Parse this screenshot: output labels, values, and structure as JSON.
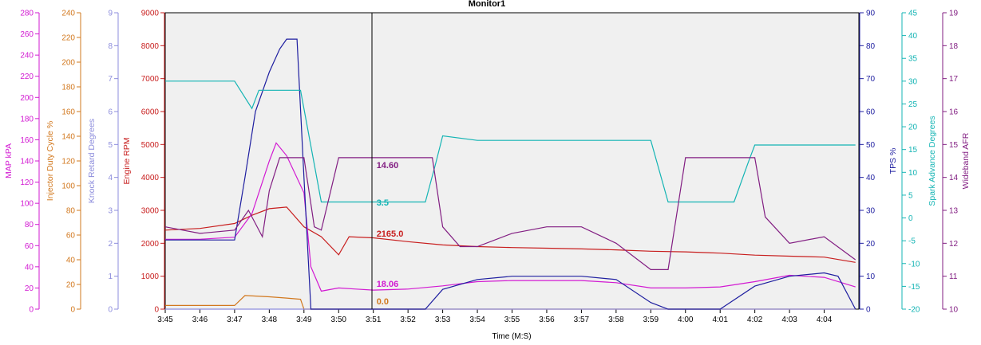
{
  "title": "Monitor1",
  "chart_data": {
    "type": "line",
    "title": "Monitor1",
    "xlabel": "Time (M:S)",
    "x_ticks": [
      "3:45",
      "3:46",
      "3:47",
      "3:48",
      "3:49",
      "3:50",
      "3:51",
      "3:52",
      "3:53",
      "3:54",
      "3:55",
      "3:56",
      "3:57",
      "3:58",
      "3:59",
      "4:00",
      "4:01",
      "4:02",
      "4:03",
      "4:04"
    ],
    "xlim": [
      "3:45",
      "4:05"
    ],
    "grid": false,
    "cursor_time": "3:51",
    "axes": [
      {
        "id": "map",
        "label": "MAP kPA",
        "side": "left",
        "color": "#d21ad2",
        "min": 0,
        "max": 280,
        "ticks": [
          0,
          20,
          40,
          60,
          80,
          100,
          120,
          140,
          160,
          180,
          200,
          220,
          240,
          260,
          280
        ]
      },
      {
        "id": "inj",
        "label": "Injector Duty Cycle %",
        "side": "left",
        "color": "#d2781e",
        "min": 0,
        "max": 240,
        "ticks": [
          0,
          20,
          40,
          60,
          80,
          100,
          120,
          140,
          160,
          180,
          200,
          220,
          240
        ]
      },
      {
        "id": "knock",
        "label": "Knock Retard Degrees",
        "side": "left",
        "color": "#8c8cdc",
        "min": 0,
        "max": 9,
        "ticks": [
          0,
          1,
          2,
          3,
          4,
          5,
          6,
          7,
          8,
          9
        ]
      },
      {
        "id": "rpm",
        "label": "Engine RPM",
        "side": "left",
        "color": "#c81e1e",
        "min": 0,
        "max": 9000,
        "ticks": [
          0,
          1000,
          2000,
          3000,
          4000,
          5000,
          6000,
          7000,
          8000,
          9000
        ]
      },
      {
        "id": "tps",
        "label": "TPS %",
        "side": "right",
        "color": "#1e1ea0",
        "min": 0,
        "max": 90,
        "ticks": [
          0,
          10,
          20,
          30,
          40,
          50,
          60,
          70,
          80,
          90
        ]
      },
      {
        "id": "spark",
        "label": "Spark Advance Degrees",
        "side": "right",
        "color": "#14b4b4",
        "min": -20,
        "max": 45,
        "ticks": [
          -20,
          -15,
          -10,
          -5,
          0,
          5,
          10,
          15,
          20,
          25,
          30,
          35,
          40,
          45
        ]
      },
      {
        "id": "afr",
        "label": "Wideband AFR",
        "side": "right",
        "color": "#821e82",
        "min": 10,
        "max": 19,
        "ticks": [
          10,
          11,
          12,
          13,
          14,
          15,
          16,
          17,
          18,
          19
        ]
      }
    ],
    "series": [
      {
        "name": "Engine RPM",
        "axis": "rpm",
        "color": "#c81e1e",
        "cursor_value": "2165.0",
        "x": [
          "3:45",
          "3:46",
          "3:47",
          "3:47.5",
          "3:48",
          "3:48.5",
          "3:49",
          "3:49.5",
          "3:50",
          "3:50.3",
          "3:51",
          "3:52",
          "3:53",
          "3:54",
          "3:55",
          "3:56",
          "3:57",
          "3:58",
          "3:59",
          "4:00",
          "4:01",
          "4:02",
          "4:03",
          "4:04",
          "4:04.9"
        ],
        "y": [
          2400,
          2450,
          2600,
          2850,
          3050,
          3100,
          2500,
          2200,
          1650,
          2200,
          2165,
          2050,
          1950,
          1900,
          1870,
          1850,
          1830,
          1800,
          1760,
          1740,
          1700,
          1640,
          1610,
          1580,
          1420
        ]
      },
      {
        "name": "MAP kPA",
        "axis": "map",
        "color": "#d21ad2",
        "cursor_value": "18.06",
        "x": [
          "3:45",
          "3:46",
          "3:47",
          "3:47.5",
          "3:48",
          "3:48.2",
          "3:48.5",
          "3:49",
          "3:49.2",
          "3:49.5",
          "3:50",
          "3:50.5",
          "3:51",
          "3:52",
          "3:53",
          "3:54",
          "3:55",
          "3:56",
          "3:57",
          "3:58",
          "3:59",
          "4:00",
          "4:01",
          "4:02",
          "4:03",
          "4:04",
          "4:04.9"
        ],
        "y": [
          66,
          66,
          68,
          90,
          140,
          157,
          145,
          110,
          40,
          17,
          20,
          19,
          18,
          19,
          22,
          26,
          27,
          27,
          27,
          25,
          20,
          20,
          21,
          26,
          32,
          30,
          21
        ]
      },
      {
        "name": "Injector Duty Cycle %",
        "axis": "inj",
        "color": "#d2781e",
        "cursor_value": "0.0",
        "x": [
          "3:45",
          "3:46",
          "3:47",
          "3:47.3",
          "3:48",
          "3:48.5",
          "3:48.9",
          "3:49",
          "3:49.2",
          "4:04.9"
        ],
        "y": [
          3,
          3,
          3,
          11,
          10,
          9,
          8,
          0,
          0,
          0
        ]
      },
      {
        "name": "Knock Retard Degrees",
        "axis": "knock",
        "color": "#8c8cdc",
        "x": [
          "3:45",
          "4:04.9"
        ],
        "y": [
          0,
          0
        ]
      },
      {
        "name": "TPS %",
        "axis": "tps",
        "color": "#1e1ea0",
        "x": [
          "3:45",
          "3:46",
          "3:47",
          "3:47.3",
          "3:47.6",
          "3:48",
          "3:48.3",
          "3:48.5",
          "3:48.8",
          "3:49",
          "3:49.2",
          "3:52.5",
          "3:53",
          "3:54",
          "3:55",
          "3:56",
          "3:57",
          "3:58",
          "3:59",
          "3:59.5",
          "4:01",
          "4:02",
          "4:03",
          "4:04",
          "4:04.4",
          "4:04.9"
        ],
        "y": [
          21,
          21,
          21,
          40,
          60,
          72,
          79,
          82,
          82,
          40,
          0,
          0,
          6,
          9,
          10,
          10,
          10,
          9,
          2,
          0,
          0,
          7,
          10,
          11,
          10,
          0
        ]
      },
      {
        "name": "Spark Advance Degrees",
        "axis": "spark",
        "color": "#14b4b4",
        "cursor_value": "3.5",
        "x": [
          "3:45",
          "3:46",
          "3:47",
          "3:47.5",
          "3:47.7",
          "3:48",
          "3:48.5",
          "3:48.9",
          "3:49.5",
          "3:50",
          "3:51",
          "3:52",
          "3:52.5",
          "3:52.8",
          "3:53",
          "3:54",
          "3:55",
          "3:56",
          "3:57",
          "3:58",
          "3:59",
          "3:59.5",
          "4:00",
          "4:01",
          "4:01.4",
          "4:01.8",
          "4:02",
          "4:03",
          "4:04",
          "4:04.9"
        ],
        "y": [
          30,
          30,
          30,
          24,
          28,
          28,
          28,
          28,
          3.5,
          3.5,
          3.5,
          3.5,
          3.5,
          12,
          18,
          17,
          17,
          17,
          17,
          17,
          17,
          3.5,
          3.5,
          3.5,
          3.5,
          12,
          16,
          16,
          16,
          16
        ]
      },
      {
        "name": "Wideband AFR",
        "axis": "afr",
        "color": "#821e82",
        "cursor_value": "14.60",
        "x": [
          "3:45",
          "3:46",
          "3:47",
          "3:47.4",
          "3:47.8",
          "3:48",
          "3:48.3",
          "3:48.8",
          "3:49",
          "3:49.3",
          "3:49.5",
          "3:50",
          "3:51",
          "3:52",
          "3:52.7",
          "3:53",
          "3:53.5",
          "3:54",
          "3:55",
          "3:56",
          "3:57",
          "3:58",
          "3:59",
          "3:59.5",
          "4:00",
          "4:01",
          "4:02",
          "4:02.3",
          "4:03",
          "4:04",
          "4:04.9"
        ],
        "y": [
          12.5,
          12.3,
          12.4,
          13.0,
          12.2,
          13.6,
          14.6,
          14.6,
          14.6,
          12.5,
          12.4,
          14.6,
          14.6,
          14.6,
          14.6,
          12.5,
          11.9,
          11.9,
          12.3,
          12.5,
          12.5,
          12.0,
          11.2,
          11.2,
          14.6,
          14.6,
          14.6,
          12.8,
          12.0,
          12.2,
          11.5
        ]
      }
    ]
  }
}
